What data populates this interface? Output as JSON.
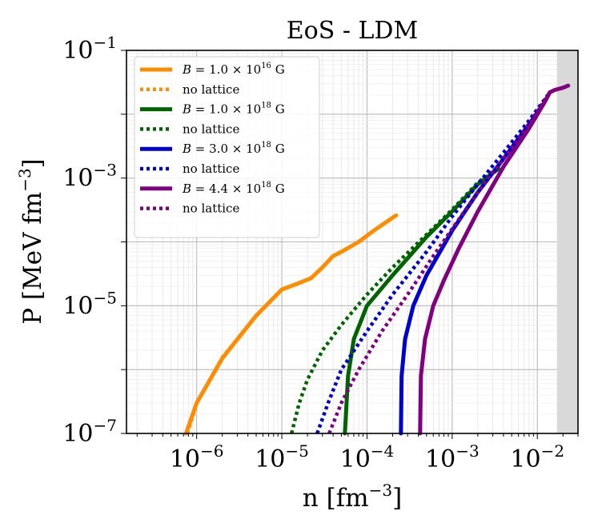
{
  "chart_data": {
    "type": "line",
    "title": "EoS - LDM",
    "xlabel": "n [fm^-3]",
    "ylabel": "P [MeV fm^-3]",
    "xlabel_parts": {
      "base": "n [fm",
      "exp": "−3",
      "close": "]"
    },
    "ylabel_parts": {
      "base": "P [MeV fm",
      "exp": "−3",
      "close": "]"
    },
    "xscale": "log",
    "yscale": "log",
    "xlim": [
      1.5e-07,
      0.03
    ],
    "ylim": [
      1e-07,
      0.1
    ],
    "grid": true,
    "legend_position": "top-left",
    "x_ticks": [
      {
        "value": 1e-06,
        "base": "10",
        "exp": "−6"
      },
      {
        "value": 1e-05,
        "base": "10",
        "exp": "−5"
      },
      {
        "value": 0.0001,
        "base": "10",
        "exp": "−4"
      },
      {
        "value": 0.001,
        "base": "10",
        "exp": "−3"
      },
      {
        "value": 0.01,
        "base": "10",
        "exp": "−2"
      }
    ],
    "y_ticks": [
      {
        "value": 1e-07,
        "base": "10",
        "exp": "−7"
      },
      {
        "value": 1e-05,
        "base": "10",
        "exp": "−5"
      },
      {
        "value": 0.001,
        "base": "10",
        "exp": "−3"
      },
      {
        "value": 0.1,
        "base": "10",
        "exp": "−1"
      }
    ],
    "shaded_region": {
      "x_from": 0.017,
      "x_to": 0.03,
      "color": "#d9d9d9"
    },
    "series": [
      {
        "name": "B = 1.0 × 10^16 G",
        "legend_prefix": "B = 1.0 × 10",
        "legend_exp": "16",
        "legend_suffix": " G",
        "color": "#ff8c00",
        "style": "solid",
        "points": [
          [
            7.5e-07,
            1e-07
          ],
          [
            1e-06,
            3e-07
          ],
          [
            2e-06,
            1.5e-06
          ],
          [
            5e-06,
            7e-06
          ],
          [
            1e-05,
            1.8e-05
          ],
          [
            1.5e-05,
            2.2e-05
          ],
          [
            2.2e-05,
            2.7e-05
          ],
          [
            3e-05,
            4e-05
          ],
          [
            4e-05,
            6e-05
          ],
          [
            5e-05,
            7e-05
          ],
          [
            8e-05,
            0.0001
          ],
          [
            0.00012,
            0.00015
          ],
          [
            0.00021,
            0.00025
          ],
          [
            0.00022,
            0.00026
          ]
        ]
      },
      {
        "name": "no lattice",
        "legend_label": "no lattice",
        "color": "#ff8c00",
        "style": "dotted",
        "points": [
          [
            7.8e-07,
            1e-07
          ],
          [
            1e-06,
            3e-07
          ],
          [
            2e-06,
            1.55e-06
          ],
          [
            5e-06,
            7e-06
          ],
          [
            1e-05,
            1.8e-05
          ],
          [
            1.5e-05,
            2.2e-05
          ],
          [
            2.2e-05,
            2.7e-05
          ],
          [
            3e-05,
            4e-05
          ],
          [
            4e-05,
            6e-05
          ],
          [
            5e-05,
            7e-05
          ],
          [
            8e-05,
            0.0001
          ],
          [
            0.00012,
            0.00015
          ],
          [
            0.00022,
            0.00026
          ]
        ]
      },
      {
        "name": "B = 1.0 × 10^18 G",
        "legend_prefix": "B = 1.0 × 10",
        "legend_exp": "18",
        "legend_suffix": " G",
        "color": "#006400",
        "style": "solid",
        "points": [
          [
            5.5e-05,
            1e-07
          ],
          [
            6e-05,
            8e-07
          ],
          [
            7e-05,
            3e-06
          ],
          [
            0.0001,
            1e-05
          ],
          [
            0.0002,
            3e-05
          ],
          [
            0.0005,
            0.00012
          ],
          [
            0.001,
            0.0003
          ],
          [
            0.002,
            0.0008
          ],
          [
            0.0035,
            0.0014
          ]
        ]
      },
      {
        "name": "no lattice",
        "legend_label": "no lattice",
        "color": "#006400",
        "style": "dotted",
        "points": [
          [
            1.3e-05,
            1e-07
          ],
          [
            1.6e-05,
            3e-07
          ],
          [
            2e-05,
            7e-07
          ],
          [
            3e-05,
            2e-06
          ],
          [
            5e-05,
            5e-06
          ],
          [
            0.0001,
            1.5e-05
          ],
          [
            0.0002,
            4e-05
          ],
          [
            0.0005,
            0.00013
          ],
          [
            0.001,
            0.00032
          ],
          [
            0.002,
            0.00085
          ],
          [
            0.0035,
            0.00145
          ]
        ]
      },
      {
        "name": "B = 3.0 × 10^18 G",
        "legend_prefix": "B = 3.0 × 10",
        "legend_exp": "18",
        "legend_suffix": " G",
        "color": "#0000cd",
        "style": "solid",
        "points": [
          [
            0.00025,
            1e-07
          ],
          [
            0.000255,
            8e-07
          ],
          [
            0.00028,
            3e-06
          ],
          [
            0.00035,
            1e-05
          ],
          [
            0.0005,
            3e-05
          ],
          [
            0.001,
            0.00015
          ],
          [
            0.002,
            0.0006
          ],
          [
            0.004,
            0.002
          ],
          [
            0.008,
            0.007
          ],
          [
            0.012,
            0.015
          ],
          [
            0.014,
            0.022
          ]
        ]
      },
      {
        "name": "no lattice",
        "legend_label": "no lattice",
        "color": "#0000cd",
        "style": "dotted",
        "points": [
          [
            2.6e-05,
            1e-07
          ],
          [
            3.5e-05,
            3e-07
          ],
          [
            5e-05,
            1e-06
          ],
          [
            0.0001,
            4e-06
          ],
          [
            0.0002,
            1.5e-05
          ],
          [
            0.0005,
            7e-05
          ],
          [
            0.001,
            0.00025
          ],
          [
            0.002,
            0.0008
          ],
          [
            0.004,
            0.0025
          ],
          [
            0.008,
            0.008
          ],
          [
            0.014,
            0.022
          ]
        ]
      },
      {
        "name": "B = 4.4 × 10^18 G",
        "legend_prefix": "B = 4.4 × 10",
        "legend_exp": "18",
        "legend_suffix": " G",
        "color": "#800080",
        "style": "solid",
        "points": [
          [
            0.00042,
            1e-07
          ],
          [
            0.00043,
            8e-07
          ],
          [
            0.00048,
            3e-06
          ],
          [
            0.0006,
            1e-05
          ],
          [
            0.0008,
            2.5e-05
          ],
          [
            0.0012,
            8e-05
          ],
          [
            0.002,
            0.0003
          ],
          [
            0.004,
            0.0015
          ],
          [
            0.008,
            0.006
          ],
          [
            0.012,
            0.015
          ],
          [
            0.014,
            0.022
          ],
          [
            0.016,
            0.024
          ],
          [
            0.02,
            0.026
          ],
          [
            0.023,
            0.028
          ]
        ]
      },
      {
        "name": "no lattice",
        "legend_label": "no lattice",
        "color": "#800080",
        "style": "dotted",
        "points": [
          [
            3.6e-05,
            1e-07
          ],
          [
            5e-05,
            3e-07
          ],
          [
            8e-05,
            1e-06
          ],
          [
            0.00015,
            4e-06
          ],
          [
            0.0003,
            1.5e-05
          ],
          [
            0.0006,
            6e-05
          ],
          [
            0.001,
            0.00016
          ],
          [
            0.002,
            0.0006
          ],
          [
            0.004,
            0.002
          ],
          [
            0.008,
            0.007
          ],
          [
            0.014,
            0.022
          ]
        ]
      }
    ]
  }
}
